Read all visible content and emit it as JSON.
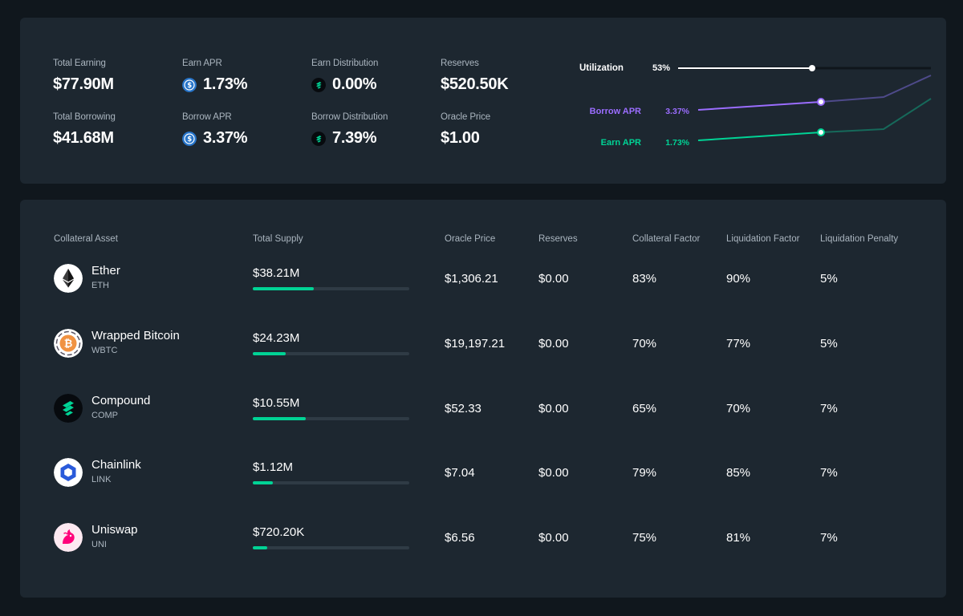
{
  "summary": {
    "total_earning": {
      "label": "Total Earning",
      "value": "$77.90M"
    },
    "total_borrowing": {
      "label": "Total Borrowing",
      "value": "$41.68M"
    },
    "earn_apr": {
      "label": "Earn APR",
      "value": "1.73%",
      "icon": "usdc-icon"
    },
    "borrow_apr": {
      "label": "Borrow APR",
      "value": "3.37%",
      "icon": "usdc-icon"
    },
    "earn_distribution": {
      "label": "Earn Distribution",
      "value": "0.00%",
      "icon": "comp-icon"
    },
    "borrow_distribution": {
      "label": "Borrow Distribution",
      "value": "7.39%",
      "icon": "comp-icon"
    },
    "reserves": {
      "label": "Reserves",
      "value": "$520.50K"
    },
    "oracle_price": {
      "label": "Oracle Price",
      "value": "$1.00"
    }
  },
  "rates_chart": {
    "utilization": {
      "label": "Utilization",
      "value": "53%",
      "fraction": 0.53,
      "color": "#ffffff"
    },
    "borrow_apr": {
      "label": "Borrow APR",
      "value": "3.37%",
      "color": "#9b6dff"
    },
    "earn_apr": {
      "label": "Earn APR",
      "value": "1.73%",
      "color": "#00d395"
    }
  },
  "table": {
    "headers": [
      "Collateral Asset",
      "Total Supply",
      "Oracle Price",
      "Reserves",
      "Collateral Factor",
      "Liquidation Factor",
      "Liquidation Penalty"
    ],
    "rows": [
      {
        "name": "Ether",
        "symbol": "ETH",
        "icon": "ether-icon",
        "supply": "$38.21M",
        "supply_fill": 0.39,
        "oracle_price": "$1,306.21",
        "reserves": "$0.00",
        "collateral_factor": "83%",
        "liquidation_factor": "90%",
        "liquidation_penalty": "5%"
      },
      {
        "name": "Wrapped Bitcoin",
        "symbol": "WBTC",
        "icon": "wbtc-icon",
        "supply": "$24.23M",
        "supply_fill": 0.21,
        "oracle_price": "$19,197.21",
        "reserves": "$0.00",
        "collateral_factor": "70%",
        "liquidation_factor": "77%",
        "liquidation_penalty": "5%"
      },
      {
        "name": "Compound",
        "symbol": "COMP",
        "icon": "comp-icon",
        "supply": "$10.55M",
        "supply_fill": 0.34,
        "oracle_price": "$52.33",
        "reserves": "$0.00",
        "collateral_factor": "65%",
        "liquidation_factor": "70%",
        "liquidation_penalty": "7%"
      },
      {
        "name": "Chainlink",
        "symbol": "LINK",
        "icon": "chainlink-icon",
        "supply": "$1.12M",
        "supply_fill": 0.13,
        "oracle_price": "$7.04",
        "reserves": "$0.00",
        "collateral_factor": "79%",
        "liquidation_factor": "85%",
        "liquidation_penalty": "7%"
      },
      {
        "name": "Uniswap",
        "symbol": "UNI",
        "icon": "uniswap-icon",
        "supply": "$720.20K",
        "supply_fill": 0.09,
        "oracle_price": "$6.56",
        "reserves": "$0.00",
        "collateral_factor": "75%",
        "liquidation_factor": "81%",
        "liquidation_penalty": "7%"
      }
    ]
  }
}
